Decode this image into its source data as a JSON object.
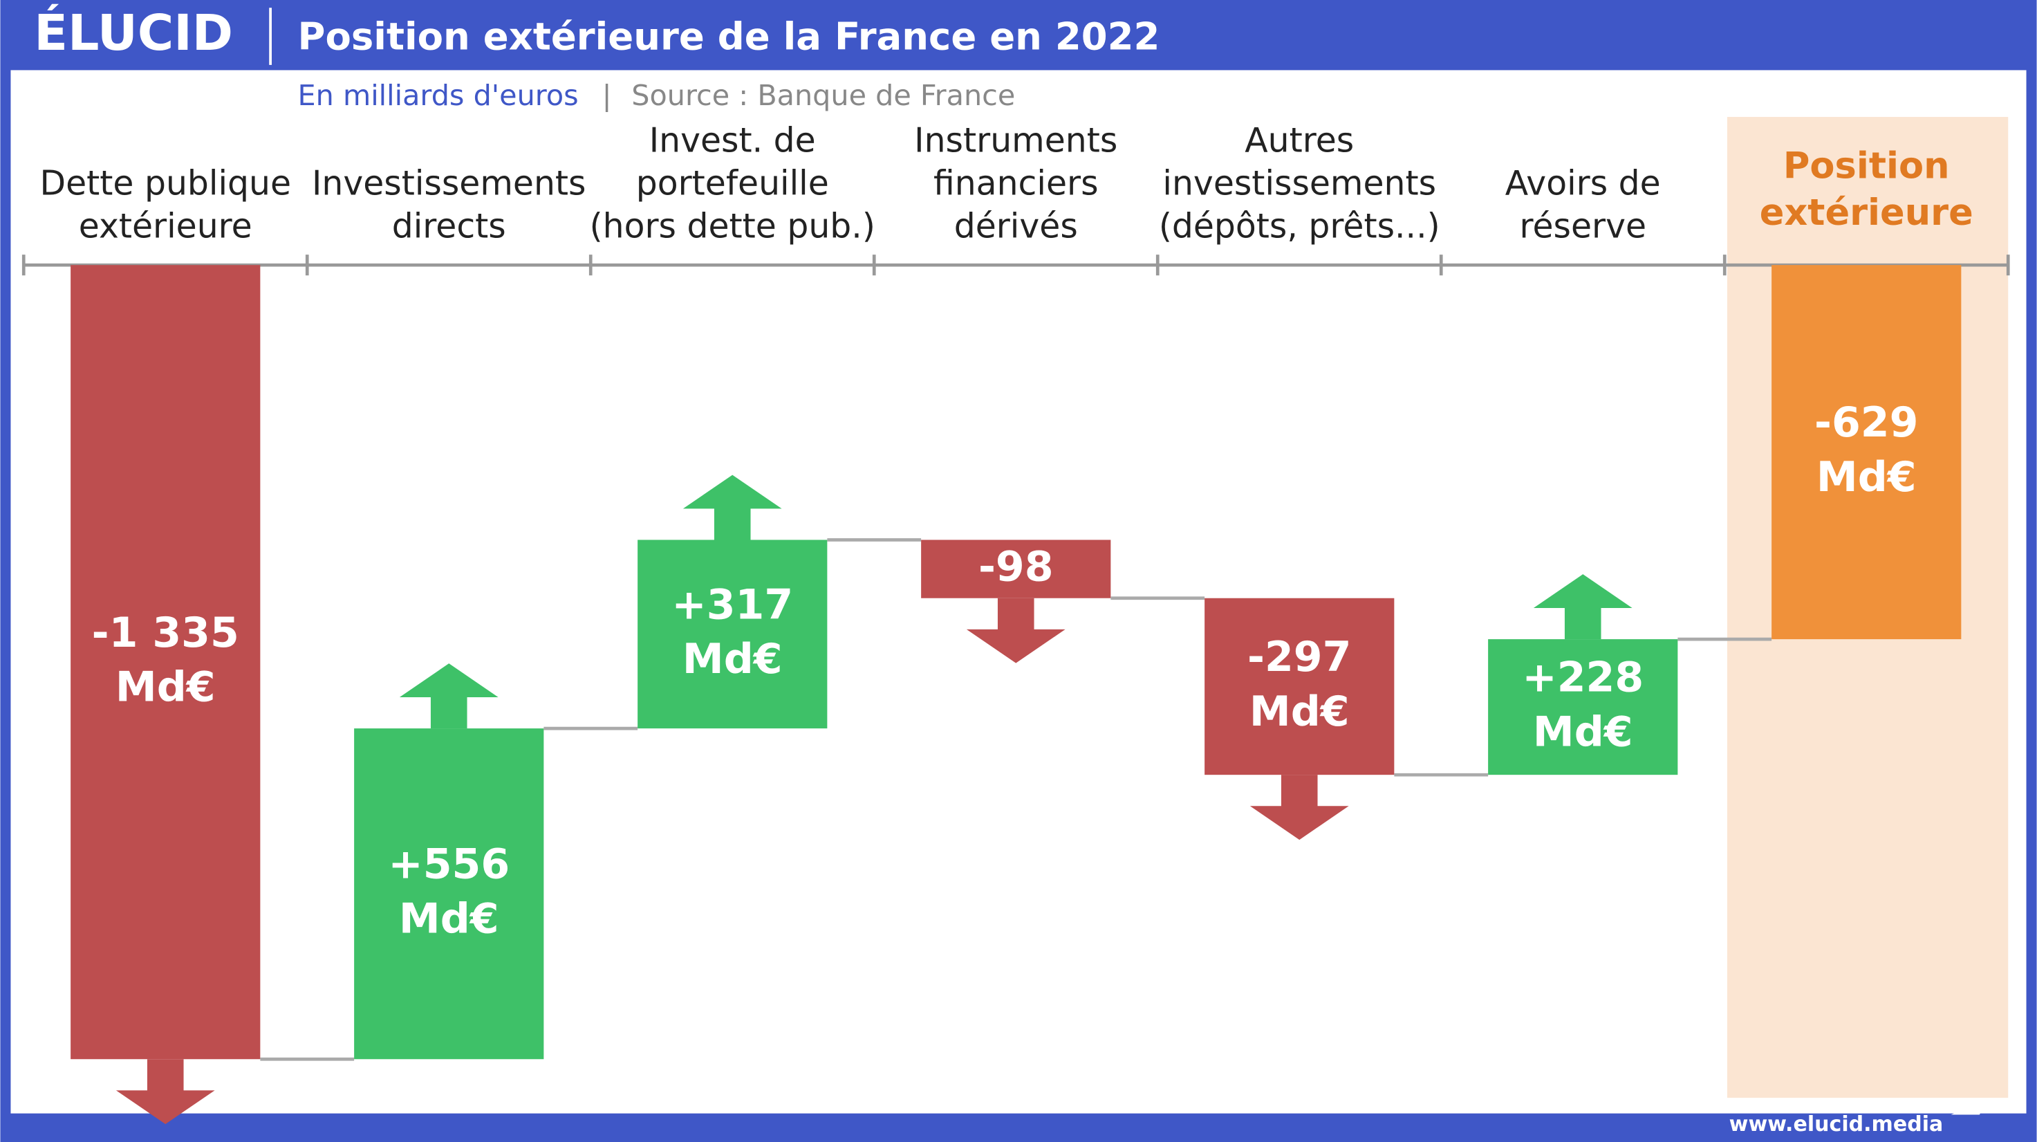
{
  "logo": "ÉLUCID",
  "footer": "www.elucid.media",
  "chart_data": {
    "type": "waterfall",
    "title": "Position extérieure de la France en 2022",
    "subtitle": "En milliards d'euros",
    "source": "Source : Banque de France",
    "categories": [
      "Dette publique\nextérieure",
      "Investissements\ndirects",
      "Invest. de\nportefeuille\n(hors dette pub.)",
      "Instruments\nfinanciers\ndérivés",
      "Autres\ninvestissements\n(dépôts, prêts...)",
      "Avoirs de\nréserve"
    ],
    "values": [
      -1335,
      556,
      317,
      -98,
      -297,
      228
    ],
    "value_labels": [
      "-1 335 Md€",
      "+556 Md€",
      "+317 Md€",
      "-98",
      "-297 Md€",
      "+228 Md€"
    ],
    "total_category": "Position\nextérieure",
    "total": -629,
    "total_label": "-629 Md€",
    "ylim": [
      -1400,
      0
    ],
    "negative_color": "#bd4e4f",
    "positive_color": "#3ec168",
    "total_color": "#f0913a"
  }
}
